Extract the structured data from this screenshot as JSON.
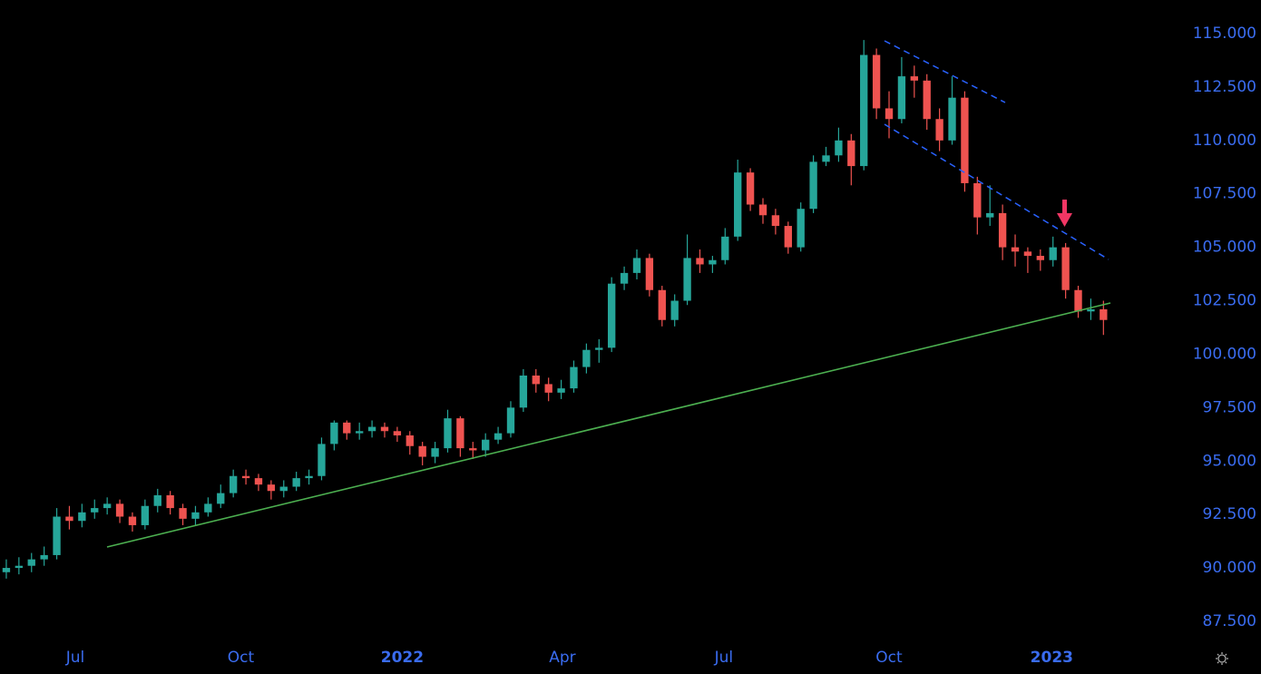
{
  "chart_data": {
    "type": "candlestick",
    "x": [
      0,
      1,
      2,
      3,
      4,
      5,
      6,
      7,
      8,
      9,
      10,
      11,
      12,
      13,
      14,
      15,
      16,
      17,
      18,
      19,
      20,
      21,
      22,
      23,
      24,
      25,
      26,
      27,
      28,
      29,
      30,
      31,
      32,
      33,
      34,
      35,
      36,
      37,
      38,
      39,
      40,
      41,
      42,
      43,
      44,
      45,
      46,
      47,
      48,
      49,
      50,
      51,
      52,
      53,
      54,
      55,
      56,
      57,
      58,
      59,
      60,
      61,
      62,
      63,
      64,
      65,
      66,
      67,
      68,
      69,
      70,
      71,
      72,
      73,
      74,
      75,
      76,
      77,
      78,
      79,
      80,
      81,
      82,
      83,
      84,
      85,
      86,
      87
    ],
    "open": [
      89.8,
      90.0,
      90.1,
      90.4,
      90.6,
      92.4,
      92.2,
      92.6,
      92.8,
      93.0,
      92.4,
      92.0,
      92.9,
      93.4,
      92.8,
      92.3,
      92.6,
      93.0,
      93.5,
      94.3,
      94.2,
      93.9,
      93.6,
      93.8,
      94.2,
      94.3,
      95.8,
      96.8,
      96.3,
      96.4,
      96.6,
      96.4,
      96.2,
      95.7,
      95.2,
      95.6,
      97.0,
      95.6,
      95.5,
      96.0,
      96.3,
      97.5,
      99.0,
      98.6,
      98.2,
      98.4,
      99.4,
      100.2,
      100.3,
      103.3,
      103.8,
      104.5,
      103.0,
      101.6,
      102.5,
      104.5,
      104.2,
      104.4,
      105.5,
      108.5,
      107.0,
      106.5,
      106.0,
      105.0,
      106.8,
      109.0,
      109.3,
      110.0,
      108.8,
      114.0,
      111.5,
      111.0,
      113.0,
      112.8,
      111.0,
      110.0,
      112.0,
      108.0,
      106.4,
      106.6,
      105.0,
      104.8,
      104.6,
      104.4,
      105.0,
      103.0,
      102.0,
      102.1
    ],
    "high": [
      90.4,
      90.5,
      90.7,
      91.0,
      92.8,
      92.9,
      93.0,
      93.2,
      93.3,
      93.2,
      92.6,
      93.2,
      93.7,
      93.6,
      93.0,
      92.9,
      93.3,
      93.9,
      94.6,
      94.6,
      94.4,
      94.1,
      94.1,
      94.5,
      94.6,
      96.1,
      96.9,
      96.9,
      96.8,
      96.9,
      96.8,
      96.6,
      96.4,
      95.9,
      95.9,
      97.4,
      97.1,
      95.9,
      96.3,
      96.6,
      97.8,
      99.3,
      99.3,
      98.9,
      98.8,
      99.7,
      100.5,
      100.7,
      103.6,
      104.1,
      104.9,
      104.7,
      103.2,
      102.8,
      105.6,
      104.9,
      104.6,
      105.9,
      109.1,
      108.7,
      107.3,
      106.8,
      106.2,
      107.1,
      109.3,
      109.7,
      110.6,
      110.3,
      114.7,
      114.3,
      112.3,
      113.9,
      113.5,
      113.1,
      111.5,
      113.0,
      112.3,
      108.3,
      107.9,
      107.0,
      105.6,
      105.0,
      104.9,
      105.5,
      105.2,
      103.2,
      102.6,
      102.5
    ],
    "low": [
      89.5,
      89.7,
      89.8,
      90.1,
      90.4,
      91.8,
      91.9,
      92.3,
      92.5,
      92.1,
      91.7,
      91.8,
      92.6,
      92.5,
      92.0,
      92.0,
      92.4,
      92.8,
      93.3,
      93.9,
      93.6,
      93.2,
      93.3,
      93.6,
      93.9,
      94.1,
      95.5,
      96.0,
      96.0,
      96.1,
      96.1,
      95.9,
      95.3,
      94.8,
      94.9,
      95.4,
      95.2,
      95.1,
      95.2,
      95.8,
      96.1,
      97.3,
      98.2,
      97.8,
      97.9,
      98.2,
      99.1,
      99.6,
      100.1,
      103.0,
      103.5,
      102.7,
      101.3,
      101.3,
      102.3,
      103.8,
      103.8,
      104.2,
      105.3,
      106.7,
      106.1,
      105.6,
      104.7,
      104.8,
      106.6,
      108.8,
      109.0,
      107.9,
      108.6,
      111.0,
      110.1,
      110.8,
      112.0,
      110.5,
      109.5,
      109.8,
      107.6,
      105.6,
      106.0,
      104.4,
      104.1,
      103.8,
      103.9,
      104.1,
      102.6,
      101.7,
      101.6,
      100.9
    ],
    "close": [
      90.0,
      90.1,
      90.4,
      90.6,
      92.4,
      92.2,
      92.6,
      92.8,
      93.0,
      92.4,
      92.0,
      92.9,
      93.4,
      92.8,
      92.3,
      92.6,
      93.0,
      93.5,
      94.3,
      94.2,
      93.9,
      93.6,
      93.8,
      94.2,
      94.3,
      95.8,
      96.8,
      96.3,
      96.4,
      96.6,
      96.4,
      96.2,
      95.7,
      95.2,
      95.6,
      97.0,
      95.6,
      95.5,
      96.0,
      96.3,
      97.5,
      99.0,
      98.6,
      98.2,
      98.4,
      99.4,
      100.2,
      100.3,
      103.3,
      103.8,
      104.5,
      103.0,
      101.6,
      102.5,
      104.5,
      104.2,
      104.4,
      105.5,
      108.5,
      107.0,
      106.5,
      106.0,
      105.0,
      106.8,
      109.0,
      109.3,
      110.0,
      108.8,
      114.0,
      111.5,
      111.0,
      113.0,
      112.8,
      111.0,
      110.0,
      112.0,
      108.0,
      106.4,
      106.6,
      105.0,
      104.8,
      104.6,
      104.4,
      105.0,
      103.0,
      102.0,
      102.1,
      101.6
    ],
    "up_color": "#26a69a",
    "down_color": "#ef5350",
    "xlim": [
      -0.5,
      92.3
    ],
    "xticks": [
      {
        "value": 5.47,
        "label": "Jul"
      },
      {
        "value": 18.6,
        "label": "Oct"
      },
      {
        "value": 31.4,
        "label": "2022"
      },
      {
        "value": 44.1,
        "label": "Apr"
      },
      {
        "value": 56.9,
        "label": "Jul"
      },
      {
        "value": 70.0,
        "label": "Oct"
      },
      {
        "value": 82.9,
        "label": "2023"
      }
    ],
    "ylim": [
      86.65,
      116.57
    ],
    "yticks": [
      {
        "value": 87.5,
        "label": "87.500"
      },
      {
        "value": 90,
        "label": "90.000"
      },
      {
        "value": 92.5,
        "label": "92.500"
      },
      {
        "value": 95,
        "label": "95.000"
      },
      {
        "value": 97.5,
        "label": "97.500"
      },
      {
        "value": 100,
        "label": "100.000"
      },
      {
        "value": 102.5,
        "label": "102.500"
      },
      {
        "value": 105,
        "label": "105.000"
      },
      {
        "value": 107.5,
        "label": "107.500"
      },
      {
        "value": 110,
        "label": "110.000"
      },
      {
        "value": 112.5,
        "label": "112.500"
      },
      {
        "value": 115,
        "label": "115.000"
      }
    ]
  }
}
